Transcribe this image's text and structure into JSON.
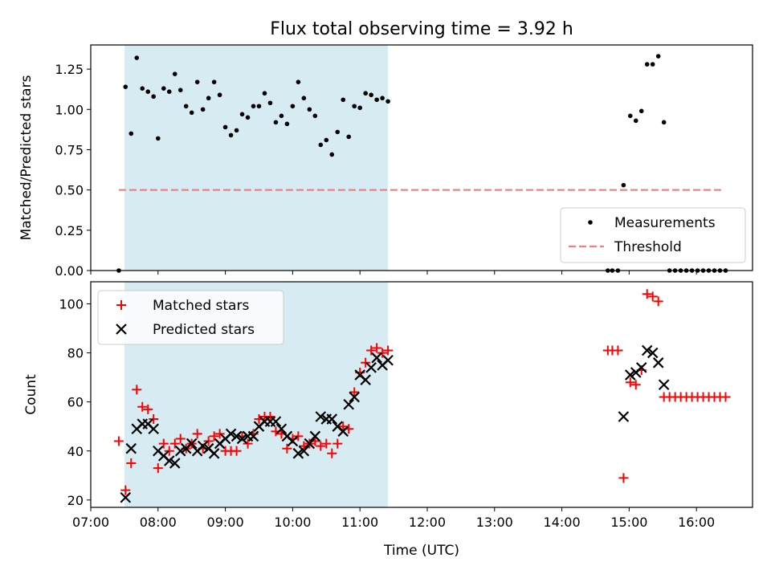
{
  "figure": {
    "title": "Flux total observing time = 3.92 h",
    "xlabel": "Time (UTC)"
  },
  "colors": {
    "shade": "#add8e6",
    "measurement": "#000000",
    "threshold": "#f08080",
    "matched": "#ff0000",
    "predicted": "#000000"
  },
  "chart_data": [
    {
      "type": "scatter",
      "ylabel": "Matched/Predicted stars",
      "xlim": [
        "07:00",
        "16:50"
      ],
      "ylim": [
        0,
        1.4
      ],
      "xtick_labels": [
        "07:00",
        "08:00",
        "09:00",
        "10:00",
        "11:00",
        "12:00",
        "13:00",
        "14:00",
        "15:00",
        "16:00"
      ],
      "ytick_labels": [
        "0.00",
        "0.25",
        "0.50",
        "0.75",
        "1.00",
        "1.25"
      ],
      "shaded_span": [
        "07:30",
        "11:25"
      ],
      "legend": {
        "placement": "lower right",
        "entries": [
          "Measurements",
          "Threshold"
        ]
      },
      "series": [
        {
          "name": "Measurements",
          "marker": "dot",
          "points": [
            [
              "07:25",
              0.0
            ],
            [
              "07:31",
              1.14
            ],
            [
              "07:36",
              0.85
            ],
            [
              "07:41",
              1.32
            ],
            [
              "07:46",
              1.13
            ],
            [
              "07:51",
              1.11
            ],
            [
              "07:56",
              1.08
            ],
            [
              "08:00",
              0.82
            ],
            [
              "08:05",
              1.13
            ],
            [
              "08:10",
              1.11
            ],
            [
              "08:15",
              1.22
            ],
            [
              "08:20",
              1.12
            ],
            [
              "08:25",
              1.02
            ],
            [
              "08:30",
              0.98
            ],
            [
              "08:35",
              1.17
            ],
            [
              "08:40",
              1.0
            ],
            [
              "08:45",
              1.07
            ],
            [
              "08:50",
              1.17
            ],
            [
              "08:55",
              1.09
            ],
            [
              "09:00",
              0.89
            ],
            [
              "09:05",
              0.84
            ],
            [
              "09:10",
              0.87
            ],
            [
              "09:15",
              0.97
            ],
            [
              "09:20",
              0.95
            ],
            [
              "09:25",
              1.02
            ],
            [
              "09:30",
              1.02
            ],
            [
              "09:35",
              1.1
            ],
            [
              "09:40",
              1.04
            ],
            [
              "09:45",
              0.92
            ],
            [
              "09:50",
              0.96
            ],
            [
              "09:55",
              0.91
            ],
            [
              "10:00",
              1.02
            ],
            [
              "10:05",
              1.17
            ],
            [
              "10:10",
              1.07
            ],
            [
              "10:15",
              1.0
            ],
            [
              "10:20",
              0.96
            ],
            [
              "10:25",
              0.78
            ],
            [
              "10:30",
              0.81
            ],
            [
              "10:35",
              0.72
            ],
            [
              "10:40",
              0.86
            ],
            [
              "10:45",
              1.06
            ],
            [
              "10:50",
              0.83
            ],
            [
              "10:55",
              1.02
            ],
            [
              "11:00",
              1.01
            ],
            [
              "11:05",
              1.1
            ],
            [
              "11:10",
              1.09
            ],
            [
              "11:15",
              1.06
            ],
            [
              "11:20",
              1.07
            ],
            [
              "11:25",
              1.05
            ],
            [
              "14:41",
              0.0
            ],
            [
              "14:45",
              0.0
            ],
            [
              "14:50",
              0.0
            ],
            [
              "14:55",
              0.53
            ],
            [
              "15:01",
              0.96
            ],
            [
              "15:06",
              0.93
            ],
            [
              "15:11",
              0.99
            ],
            [
              "15:16",
              1.28
            ],
            [
              "15:21",
              1.28
            ],
            [
              "15:26",
              1.33
            ],
            [
              "15:31",
              0.92
            ],
            [
              "15:36",
              0.0
            ],
            [
              "15:41",
              0.0
            ],
            [
              "15:46",
              0.0
            ],
            [
              "15:51",
              0.0
            ],
            [
              "15:56",
              0.0
            ],
            [
              "16:01",
              0.0
            ],
            [
              "16:06",
              0.0
            ],
            [
              "16:11",
              0.0
            ],
            [
              "16:16",
              0.0
            ],
            [
              "16:21",
              0.0
            ],
            [
              "16:26",
              0.0
            ]
          ]
        },
        {
          "name": "Threshold",
          "marker": "dashed-line",
          "points": [
            [
              "07:25",
              0.5
            ],
            [
              "16:25",
              0.5
            ]
          ]
        }
      ]
    },
    {
      "type": "scatter",
      "ylabel": "Count",
      "xlabel": "Time (UTC)",
      "xlim": [
        "07:00",
        "16:50"
      ],
      "ylim": [
        17,
        109
      ],
      "xtick_labels": [
        "07:00",
        "08:00",
        "09:00",
        "10:00",
        "11:00",
        "12:00",
        "13:00",
        "14:00",
        "15:00",
        "16:00"
      ],
      "ytick_labels": [
        "20",
        "40",
        "60",
        "80",
        "100"
      ],
      "shaded_span": [
        "07:30",
        "11:25"
      ],
      "legend": {
        "placement": "upper left",
        "entries": [
          "Matched stars",
          "Predicted stars"
        ]
      },
      "series": [
        {
          "name": "Matched stars",
          "marker": "plus",
          "points": [
            [
              "07:25",
              44
            ],
            [
              "07:31",
              24
            ],
            [
              "07:36",
              35
            ],
            [
              "07:41",
              65
            ],
            [
              "07:46",
              58
            ],
            [
              "07:51",
              57
            ],
            [
              "07:56",
              53
            ],
            [
              "08:00",
              33
            ],
            [
              "08:05",
              43
            ],
            [
              "08:10",
              40
            ],
            [
              "08:15",
              43
            ],
            [
              "08:20",
              45
            ],
            [
              "08:25",
              41
            ],
            [
              "08:30",
              43
            ],
            [
              "08:35",
              47
            ],
            [
              "08:40",
              41
            ],
            [
              "08:45",
              44
            ],
            [
              "08:50",
              46
            ],
            [
              "08:55",
              47
            ],
            [
              "09:00",
              40
            ],
            [
              "09:05",
              40
            ],
            [
              "09:10",
              40
            ],
            [
              "09:15",
              46
            ],
            [
              "09:20",
              43
            ],
            [
              "09:25",
              47
            ],
            [
              "09:30",
              53
            ],
            [
              "09:35",
              54
            ],
            [
              "09:40",
              54
            ],
            [
              "09:45",
              48
            ],
            [
              "09:50",
              47
            ],
            [
              "09:55",
              41
            ],
            [
              "10:00",
              45
            ],
            [
              "10:05",
              46
            ],
            [
              "10:10",
              42
            ],
            [
              "10:15",
              43
            ],
            [
              "10:20",
              44
            ],
            [
              "10:25",
              42
            ],
            [
              "10:30",
              43
            ],
            [
              "10:35",
              39
            ],
            [
              "10:40",
              43
            ],
            [
              "10:45",
              50
            ],
            [
              "10:50",
              49
            ],
            [
              "10:55",
              64
            ],
            [
              "11:00",
              72
            ],
            [
              "11:05",
              76
            ],
            [
              "11:10",
              81
            ],
            [
              "11:15",
              82
            ],
            [
              "11:20",
              80
            ],
            [
              "11:25",
              81
            ],
            [
              "14:41",
              81
            ],
            [
              "14:45",
              81
            ],
            [
              "14:50",
              81
            ],
            [
              "14:55",
              29
            ],
            [
              "15:01",
              68
            ],
            [
              "15:06",
              67
            ],
            [
              "15:11",
              73
            ],
            [
              "15:16",
              104
            ],
            [
              "15:21",
              103
            ],
            [
              "15:26",
              101
            ],
            [
              "15:31",
              62
            ],
            [
              "15:36",
              62
            ],
            [
              "15:41",
              62
            ],
            [
              "15:46",
              62
            ],
            [
              "15:51",
              62
            ],
            [
              "15:56",
              62
            ],
            [
              "16:01",
              62
            ],
            [
              "16:06",
              62
            ],
            [
              "16:11",
              62
            ],
            [
              "16:16",
              62
            ],
            [
              "16:21",
              62
            ],
            [
              "16:26",
              62
            ]
          ]
        },
        {
          "name": "Predicted stars",
          "marker": "x",
          "points": [
            [
              "07:31",
              21
            ],
            [
              "07:36",
              41
            ],
            [
              "07:41",
              49
            ],
            [
              "07:46",
              51
            ],
            [
              "07:51",
              51
            ],
            [
              "07:56",
              49
            ],
            [
              "08:00",
              40
            ],
            [
              "08:05",
              38
            ],
            [
              "08:10",
              36
            ],
            [
              "08:15",
              35
            ],
            [
              "08:20",
              40
            ],
            [
              "08:25",
              41
            ],
            [
              "08:30",
              43
            ],
            [
              "08:35",
              40
            ],
            [
              "08:40",
              42
            ],
            [
              "08:45",
              41
            ],
            [
              "08:50",
              39
            ],
            [
              "08:55",
              43
            ],
            [
              "09:00",
              45
            ],
            [
              "09:05",
              47
            ],
            [
              "09:10",
              46
            ],
            [
              "09:15",
              45
            ],
            [
              "09:20",
              46
            ],
            [
              "09:25",
              46
            ],
            [
              "09:30",
              50
            ],
            [
              "09:35",
              52
            ],
            [
              "09:40",
              52
            ],
            [
              "09:45",
              52
            ],
            [
              "09:50",
              49
            ],
            [
              "09:55",
              46
            ],
            [
              "10:00",
              44
            ],
            [
              "10:05",
              39
            ],
            [
              "10:10",
              40
            ],
            [
              "10:15",
              43
            ],
            [
              "10:20",
              46
            ],
            [
              "10:25",
              54
            ],
            [
              "10:30",
              53
            ],
            [
              "10:35",
              53
            ],
            [
              "10:40",
              50
            ],
            [
              "10:45",
              48
            ],
            [
              "10:50",
              59
            ],
            [
              "10:55",
              62
            ],
            [
              "11:00",
              71
            ],
            [
              "11:05",
              69
            ],
            [
              "11:10",
              74
            ],
            [
              "11:15",
              78
            ],
            [
              "11:20",
              75
            ],
            [
              "11:25",
              77
            ],
            [
              "14:55",
              54
            ],
            [
              "15:01",
              71
            ],
            [
              "15:06",
              72
            ],
            [
              "15:11",
              74
            ],
            [
              "15:16",
              81
            ],
            [
              "15:21",
              80
            ],
            [
              "15:26",
              76
            ],
            [
              "15:31",
              67
            ]
          ]
        }
      ]
    }
  ]
}
